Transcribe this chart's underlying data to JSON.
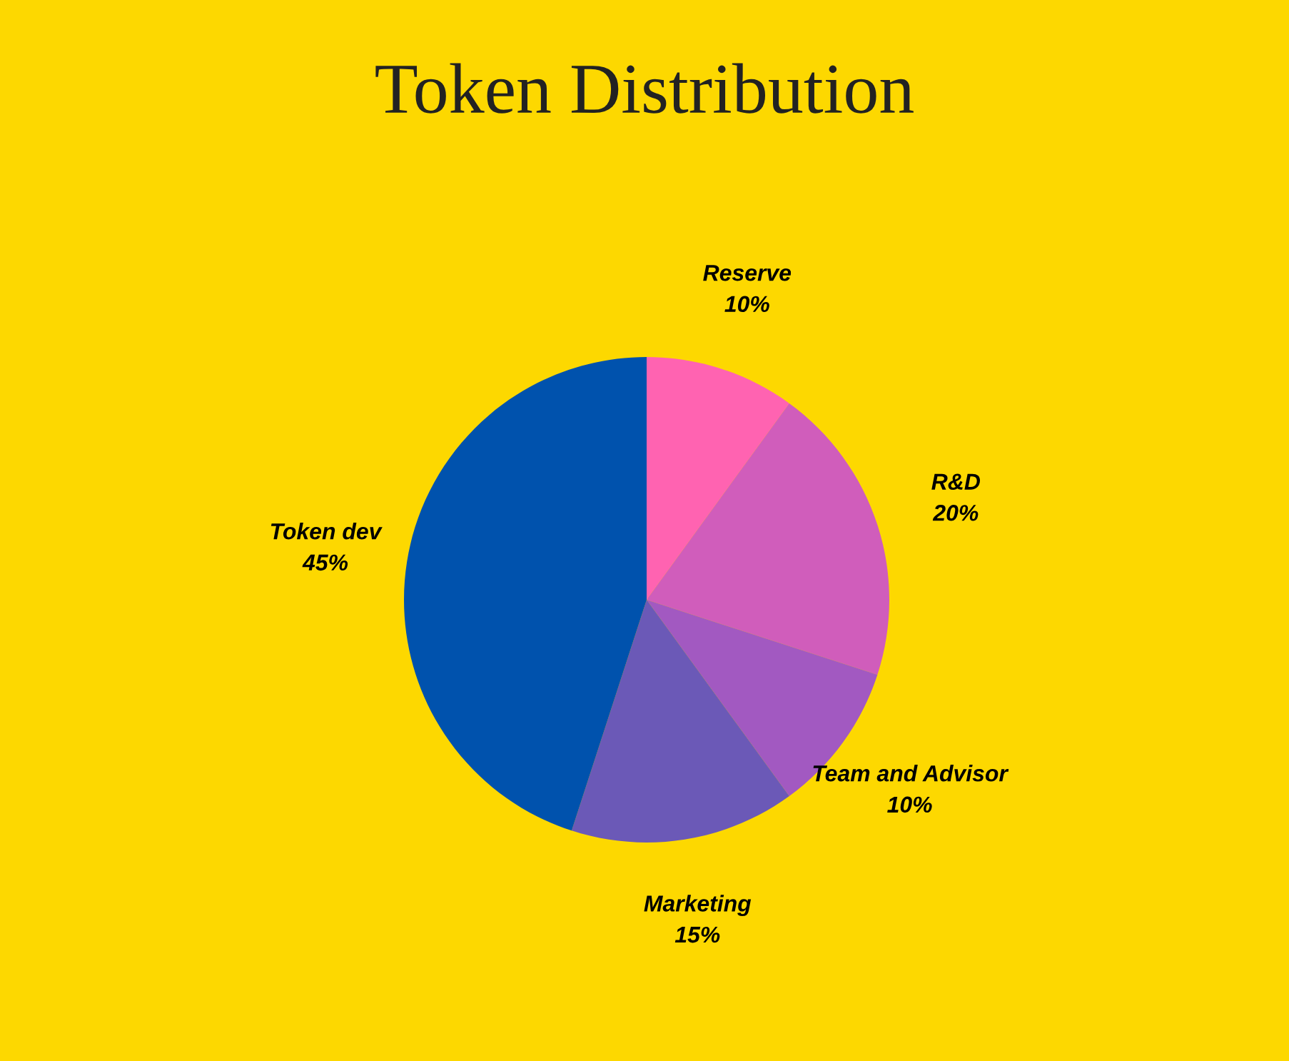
{
  "chart_data": {
    "type": "pie",
    "title": "Token Distribution",
    "categories": [
      "Reserve",
      "R&D",
      "Team and Advisor",
      "Marketing",
      "Token dev"
    ],
    "values": [
      10,
      20,
      10,
      15,
      45
    ],
    "value_labels": [
      "10%",
      "20%",
      "10%",
      "15%",
      "45%"
    ],
    "colors": [
      "#ff63b1",
      "#d05dbb",
      "#a259c1",
      "#6b59b7",
      "#0052ad"
    ],
    "legend": false
  }
}
